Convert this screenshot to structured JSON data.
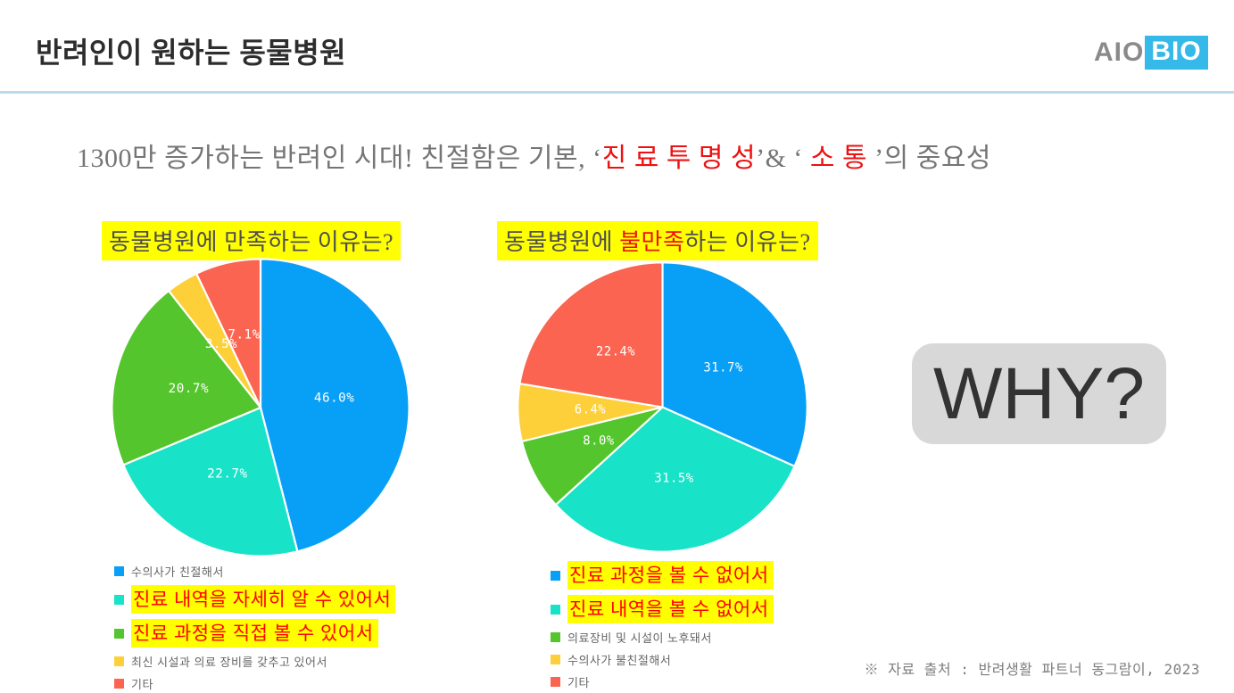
{
  "header": {
    "title": "반려인이 원하는 동물병원",
    "logo": {
      "left": "AIO",
      "right": "BIO"
    }
  },
  "subtitle": {
    "parts": [
      {
        "text": "1300만 증가하는 반려인 시대! 친절함은 기본, ‘",
        "color": "gray"
      },
      {
        "text": "진 료  투 명 성",
        "color": "red"
      },
      {
        "text": "’& ‘ ",
        "color": "gray"
      },
      {
        "text": "소 통",
        "color": "red"
      },
      {
        "text": " ’의  중요성",
        "color": "gray"
      }
    ]
  },
  "chart_data": [
    {
      "type": "pie",
      "title": "동물병원에 만족하는 이유는?",
      "title_parts": [
        {
          "text": "동물병원에 만족하는 이유는?",
          "color": "dark"
        }
      ],
      "categories": [
        "수의사가 친절해서",
        "진료 내역을 자세히 알 수 있어서",
        "진료 과정을 직접 볼 수 있어서",
        "최신 시설과 의료 장비를 갖추고 있어서",
        "기타"
      ],
      "values": [
        46.0,
        22.7,
        20.7,
        3.5,
        7.1
      ],
      "value_labels": [
        "46.0%",
        "22.7%",
        "20.7%",
        "3.5%",
        "7.1%"
      ],
      "colors": [
        "#089ff7",
        "#18e2c8",
        "#54c52c",
        "#fdd03a",
        "#fa6450"
      ],
      "highlighted": [
        false,
        true,
        true,
        false,
        false
      ],
      "start_angle": 0,
      "direction": "clockwise",
      "label_position_ratio": 0.5,
      "label_color": "#ffffff",
      "legend_position": "bottom-left"
    },
    {
      "type": "pie",
      "title": "동물병원에 불만족하는 이유는?",
      "title_parts": [
        {
          "text": "동물병원에 ",
          "color": "dark"
        },
        {
          "text": "불만족",
          "color": "red"
        },
        {
          "text": "하는 이유는?",
          "color": "dark"
        }
      ],
      "categories": [
        "진료 과정을 볼 수 없어서",
        "진료 내역을 볼 수 없어서",
        "의료장비 및 시설이 노후돼서",
        "수의사가 불친절해서",
        "기타"
      ],
      "values": [
        31.7,
        31.5,
        8.0,
        6.4,
        22.4
      ],
      "value_labels": [
        "31.7%",
        "31.5%",
        "8.0%",
        "6.4%",
        "22.4%"
      ],
      "colors": [
        "#089ff7",
        "#18e2c8",
        "#54c52c",
        "#fdd03a",
        "#fa6450"
      ],
      "highlighted": [
        true,
        true,
        false,
        false,
        false
      ],
      "start_angle": 0,
      "direction": "clockwise",
      "label_position_ratio": 0.5,
      "label_color": "#ffffff",
      "legend_position": "bottom-left"
    }
  ],
  "why_box": {
    "label": "WHY?"
  },
  "footer": {
    "source": "※ 자료 출처 : 반려생활 파트너 동그람이, 2023"
  },
  "colors": {
    "title_text": "#2d2d2d",
    "logo_gray": "#8a8a8a",
    "logo_cyan": "#35b9e9",
    "divider_blue": "#bcdcec",
    "highlight_yellow": "#ffff00",
    "highlight_red": "#ff0000",
    "why_box_bg": "#d8d8d8",
    "slice_stroke": "#ffffff"
  }
}
